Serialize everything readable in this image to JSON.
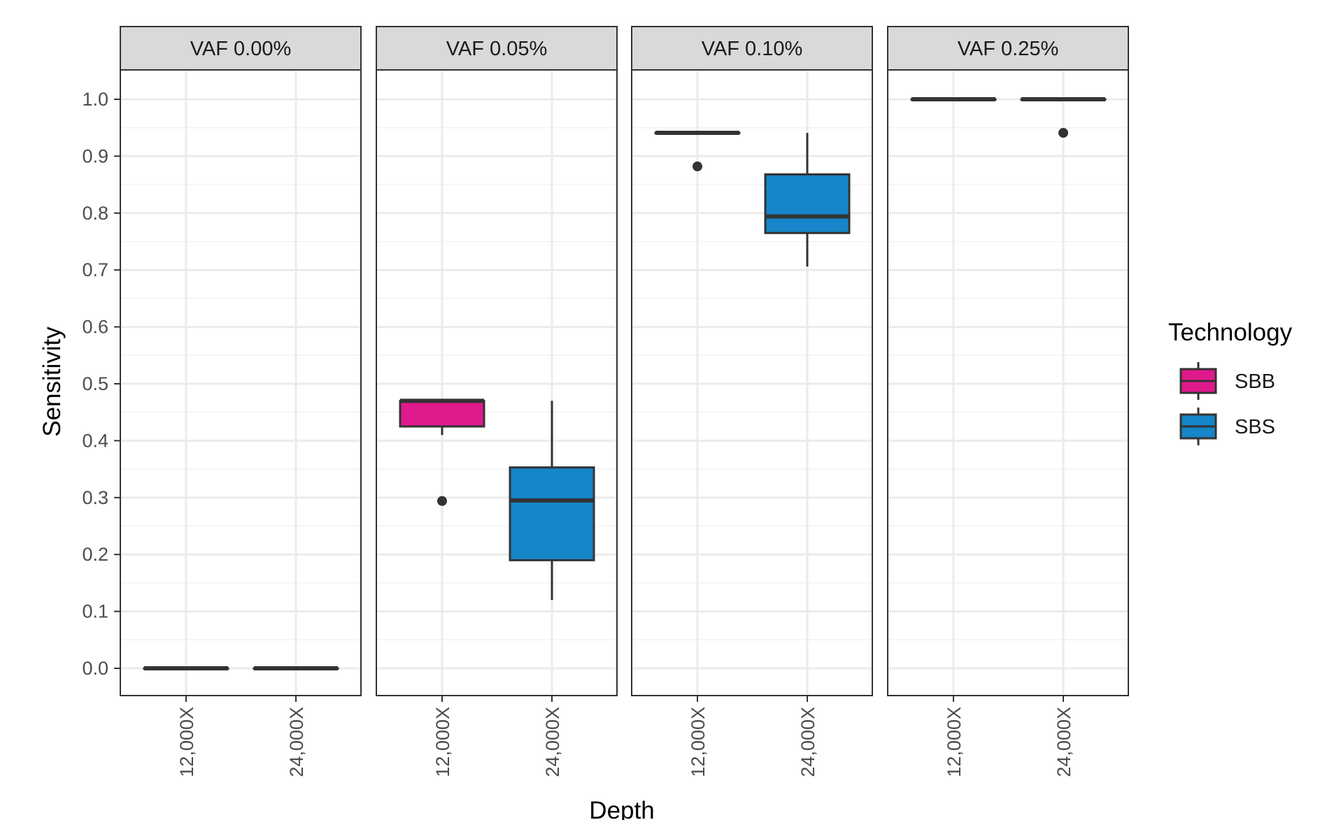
{
  "chart_data": {
    "type": "boxplot",
    "xlabel": "Depth",
    "ylabel": "Sensitivity",
    "ylim": [
      -0.05,
      1.05
    ],
    "yticks": [
      "0.0",
      "0.1",
      "0.2",
      "0.3",
      "0.4",
      "0.5",
      "0.6",
      "0.7",
      "0.8",
      "0.9",
      "1.0"
    ],
    "categories": [
      "12,000X",
      "24,000X"
    ],
    "grid": true,
    "legend": {
      "title": "Technology",
      "position": "right",
      "entries": [
        {
          "name": "SBB",
          "color": "#E0198D"
        },
        {
          "name": "SBS",
          "color": "#1685C9"
        }
      ]
    },
    "panels": [
      {
        "title": "VAF 0.00%",
        "boxes": [
          {
            "category": "12,000X",
            "group": "SBB",
            "min": 0.0,
            "q1": 0.0,
            "median": 0.0,
            "q3": 0.0,
            "max": 0.0,
            "outliers": []
          },
          {
            "category": "24,000X",
            "group": "SBS",
            "min": 0.0,
            "q1": 0.0,
            "median": 0.0,
            "q3": 0.0,
            "max": 0.0,
            "outliers": []
          }
        ]
      },
      {
        "title": "VAF 0.05%",
        "boxes": [
          {
            "category": "12,000X",
            "group": "SBB",
            "min": 0.41,
            "q1": 0.425,
            "median": 0.47,
            "q3": 0.47,
            "max": 0.47,
            "outliers": [
              0.294
            ]
          },
          {
            "category": "24,000X",
            "group": "SBS",
            "min": 0.12,
            "q1": 0.19,
            "median": 0.295,
            "q3": 0.353,
            "max": 0.47,
            "outliers": []
          }
        ]
      },
      {
        "title": "VAF 0.10%",
        "boxes": [
          {
            "category": "12,000X",
            "group": "SBB",
            "min": 0.941,
            "q1": 0.941,
            "median": 0.941,
            "q3": 0.941,
            "max": 0.941,
            "outliers": [
              0.882
            ]
          },
          {
            "category": "24,000X",
            "group": "SBS",
            "min": 0.706,
            "q1": 0.765,
            "median": 0.794,
            "q3": 0.868,
            "max": 0.941,
            "outliers": []
          }
        ]
      },
      {
        "title": "VAF 0.25%",
        "boxes": [
          {
            "category": "12,000X",
            "group": "SBB",
            "min": 1.0,
            "q1": 1.0,
            "median": 1.0,
            "q3": 1.0,
            "max": 1.0,
            "outliers": []
          },
          {
            "category": "24,000X",
            "group": "SBS",
            "min": 1.0,
            "q1": 1.0,
            "median": 1.0,
            "q3": 1.0,
            "max": 1.0,
            "outliers": [
              0.941
            ]
          }
        ]
      }
    ]
  }
}
